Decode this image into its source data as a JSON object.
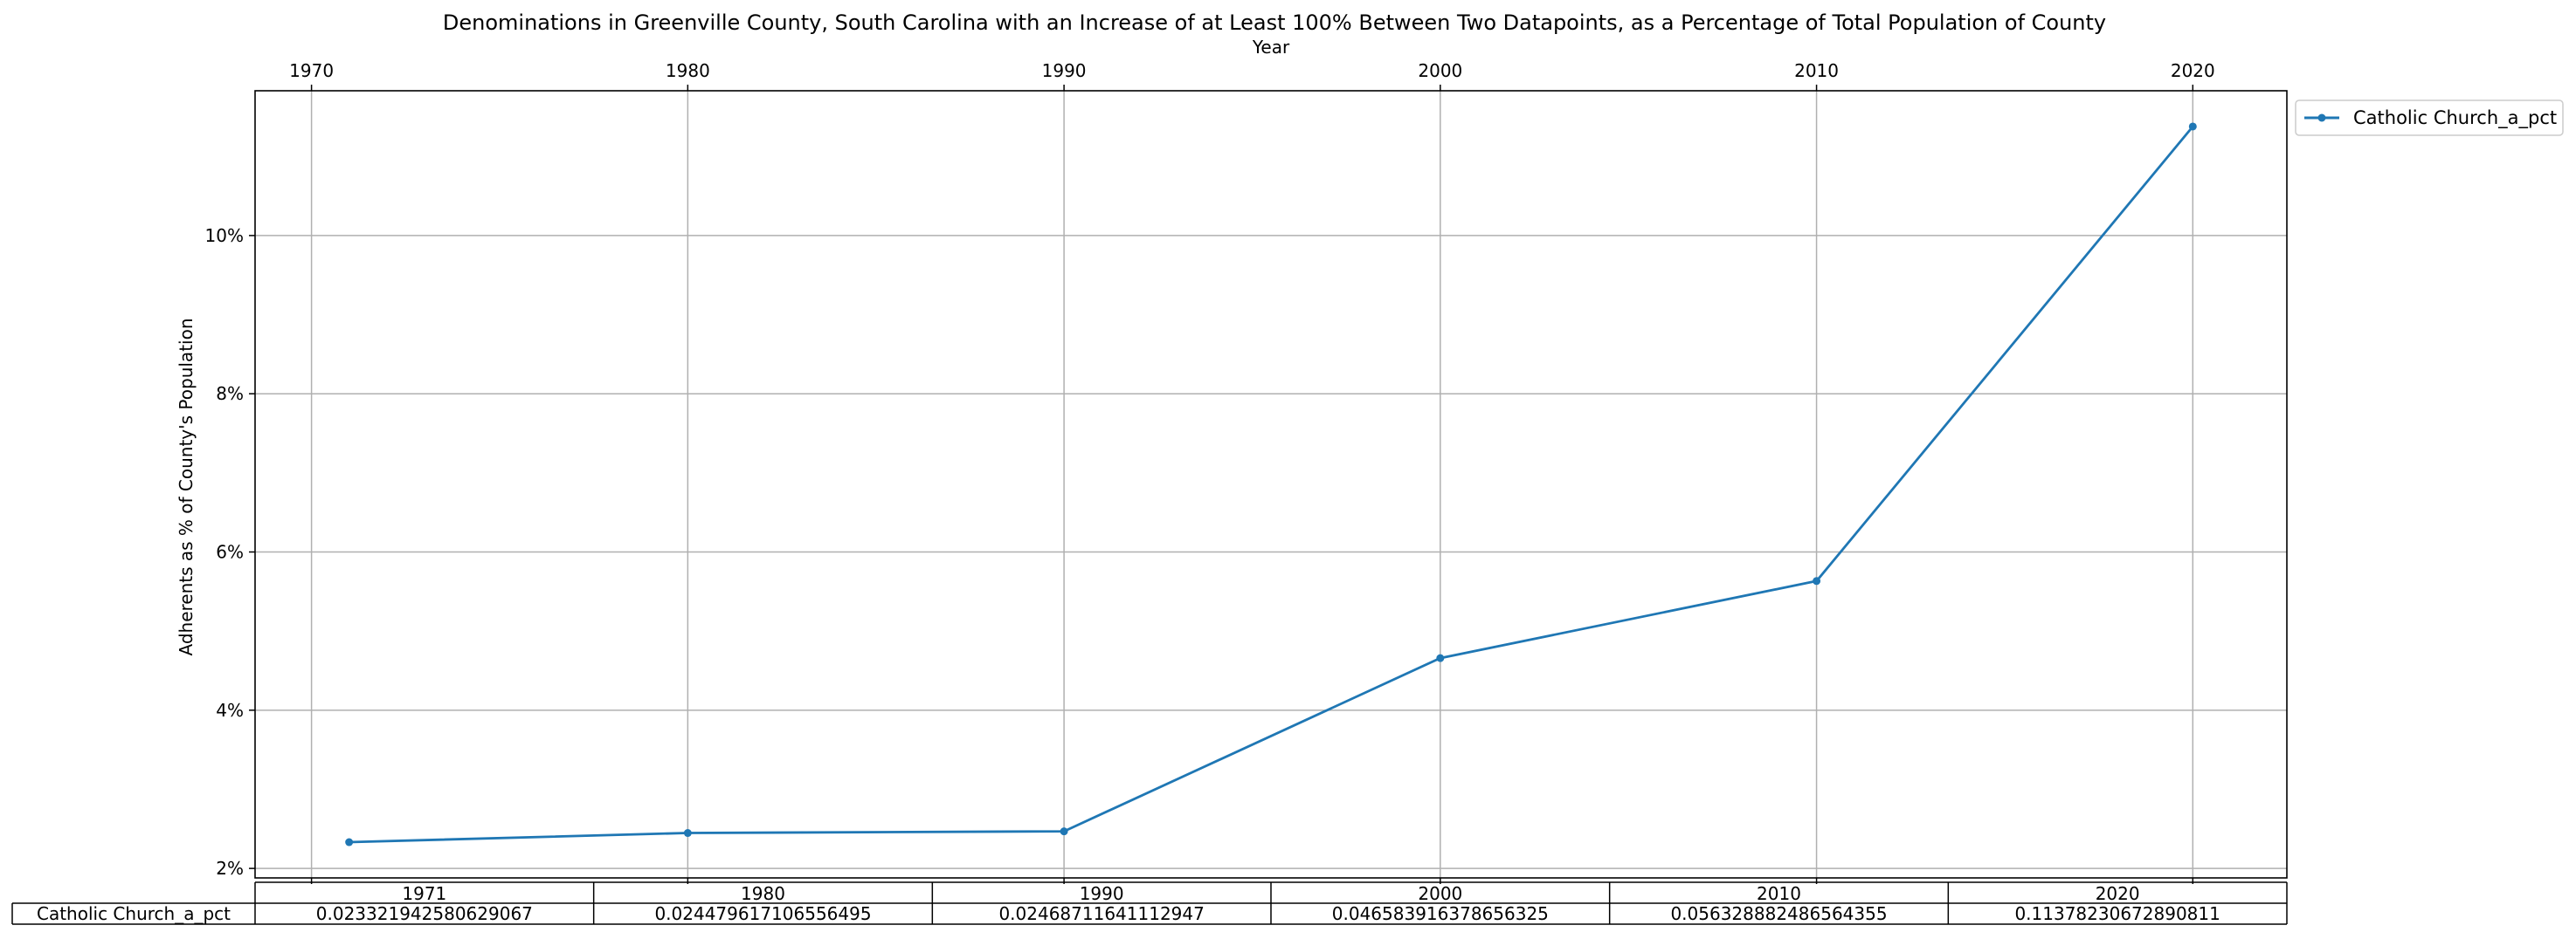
{
  "chart_data": {
    "type": "line",
    "title": "Denominations in Greenville County, South Carolina with an Increase of at Least 100% Between Two Datapoints, as a Percentage of Total Population of County",
    "xlabel": "Year",
    "ylabel": "Adherents as % of County's Population",
    "x_ticks": [
      1970,
      1980,
      1990,
      2000,
      2010,
      2020
    ],
    "x_tick_labels": [
      "1970",
      "1980",
      "1990",
      "2000",
      "2010",
      "2020"
    ],
    "y_ticks": [
      0.02,
      0.04,
      0.06,
      0.08,
      0.1
    ],
    "y_tick_labels": [
      "2%",
      "4%",
      "6%",
      "8%",
      "10%"
    ],
    "xlim": [
      1968.5,
      2022.5
    ],
    "ylim": [
      0.0188,
      0.1183
    ],
    "grid": true,
    "legend_position": "outside-top-right",
    "x": [
      1971,
      1980,
      1990,
      2000,
      2010,
      2020
    ],
    "series": [
      {
        "name": "Catholic Church_a_pct",
        "color": "#1f77b4",
        "marker": "circle",
        "values": [
          0.023321942580629067,
          0.02447961710655649,
          0.02468711641112294,
          0.04658391637865632,
          0.05632888248656435,
          0.11378230672890811
        ]
      }
    ],
    "table": {
      "col_labels": [
        "1971",
        "1980",
        "1990",
        "2000",
        "2010",
        "2020"
      ],
      "rows": [
        {
          "label": "Catholic Church_a_pct",
          "cells": [
            "0.023321942580629067",
            "0.024479617106556495",
            "0.02468711641112947",
            "0.046583916378656325",
            "0.056328882486564355",
            "0.11378230672890811"
          ]
        }
      ]
    }
  }
}
